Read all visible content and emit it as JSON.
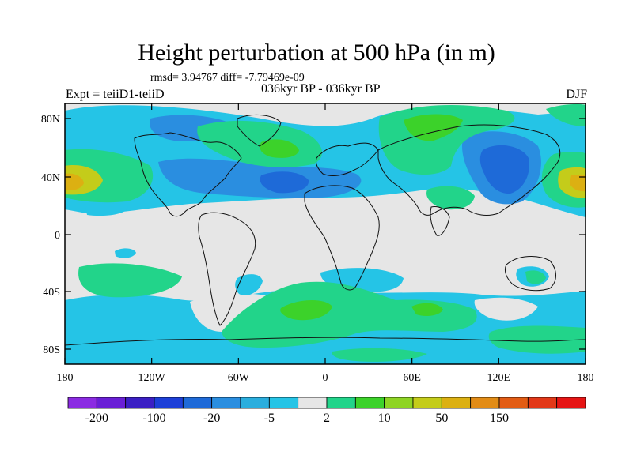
{
  "header": {
    "title": "Height perturbation at 500 hPa (in m)",
    "stats": "rmsd= 3.94767 diff= -7.79469e-09",
    "left_label": "Expt = teiiD1-teiiD",
    "center_label": "036kyr BP - 036kyr BP",
    "right_label": "DJF"
  },
  "axes": {
    "lat_labels": [
      "80N",
      "40N",
      "0",
      "40S",
      "80S"
    ],
    "lon_labels": [
      "180",
      "120W",
      "60W",
      "0",
      "60E",
      "120E",
      "180"
    ]
  },
  "colorbar": {
    "colors": [
      "#8b2be2",
      "#6a1fd6",
      "#3b1fc4",
      "#1d3fd8",
      "#1e6ad8",
      "#2a8ee0",
      "#2aaede",
      "#25c4e6",
      "#e6e6e6",
      "#22d48a",
      "#3cd22a",
      "#8ed424",
      "#c4cc1a",
      "#dcb012",
      "#e28c16",
      "#e25c14",
      "#e23818",
      "#e61414"
    ],
    "labels": [
      "-200",
      "-100",
      "-20",
      "-5",
      "2",
      "10",
      "50",
      "150"
    ]
  },
  "colors": {
    "neutral": "#e6e6e6",
    "light_blue": "#25c4e6",
    "mid_blue": "#2a8ee0",
    "dark_blue": "#1e6ad8",
    "green": "#22d48a",
    "bright_green": "#3cd22a",
    "yellow": "#c4cc1a",
    "orange": "#dcb012"
  }
}
